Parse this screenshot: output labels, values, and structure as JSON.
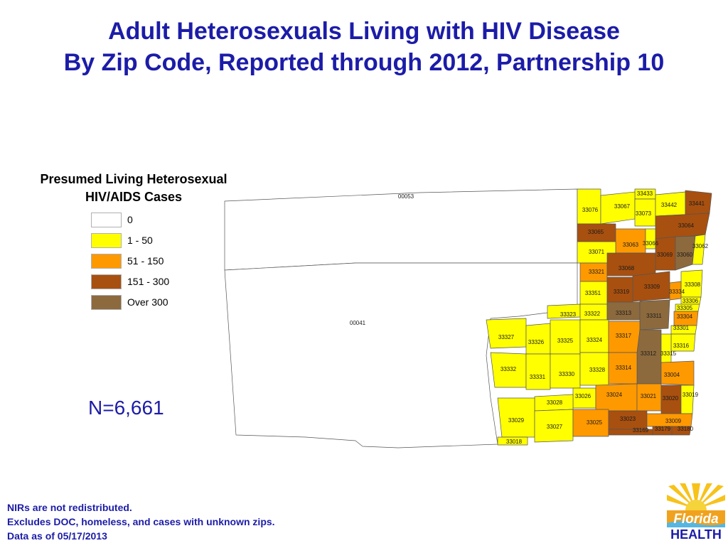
{
  "title": {
    "line1": "Adult Heterosexuals Living with HIV Disease",
    "line2": "By Zip Code, Reported through 2012, Partnership 10"
  },
  "legend": {
    "title_line1": "Presumed Living Heterosexual",
    "title_line2": "HIV/AIDS Cases",
    "items": [
      {
        "label": "0",
        "color": "#ffffff"
      },
      {
        "label": "1 - 50",
        "color": "#ffff00"
      },
      {
        "label": "51 - 150",
        "color": "#ff9900"
      },
      {
        "label": "151 - 300",
        "color": "#a85010"
      },
      {
        "label": "Over 300",
        "color": "#8c6a3e"
      }
    ]
  },
  "n_count": "N=6,661",
  "footnotes": [
    "NIRs are not redistributed.",
    "Excludes DOC, homeless, and cases with unknown zips.",
    "Data as of 05/17/2013"
  ],
  "logo": {
    "text_line1": "Florida",
    "text_line2": "HEALTH"
  },
  "zips": [
    {
      "zip": "00053",
      "class": "0"
    },
    {
      "zip": "00041",
      "class": "0"
    },
    {
      "zip": "33433",
      "class": "1 - 50"
    },
    {
      "zip": "33076",
      "class": "1 - 50"
    },
    {
      "zip": "33067",
      "class": "1 - 50"
    },
    {
      "zip": "33073",
      "class": "1 - 50"
    },
    {
      "zip": "33442",
      "class": "1 - 50"
    },
    {
      "zip": "33441",
      "class": "151 - 300"
    },
    {
      "zip": "33064",
      "class": "151 - 300"
    },
    {
      "zip": "33065",
      "class": "151 - 300"
    },
    {
      "zip": "33063",
      "class": "51 - 150"
    },
    {
      "zip": "33066",
      "class": "1 - 50"
    },
    {
      "zip": "33071",
      "class": "1 - 50"
    },
    {
      "zip": "33069",
      "class": "151 - 300"
    },
    {
      "zip": "33060",
      "class": "Over 300"
    },
    {
      "zip": "33062",
      "class": "1 - 50"
    },
    {
      "zip": "33321",
      "class": "51 - 150"
    },
    {
      "zip": "33068",
      "class": "151 - 300"
    },
    {
      "zip": "33309",
      "class": "151 - 300"
    },
    {
      "zip": "33308",
      "class": "1 - 50"
    },
    {
      "zip": "33351",
      "class": "1 - 50"
    },
    {
      "zip": "33319",
      "class": "151 - 300"
    },
    {
      "zip": "33334",
      "class": "51 - 150"
    },
    {
      "zip": "33306",
      "class": "1 - 50"
    },
    {
      "zip": "33305",
      "class": "1 - 50"
    },
    {
      "zip": "33323",
      "class": "1 - 50"
    },
    {
      "zip": "33322",
      "class": "1 - 50"
    },
    {
      "zip": "33313",
      "class": "Over 300"
    },
    {
      "zip": "33311",
      "class": "Over 300"
    },
    {
      "zip": "33304",
      "class": "51 - 150"
    },
    {
      "zip": "33301",
      "class": "1 - 50"
    },
    {
      "zip": "33327",
      "class": "1 - 50"
    },
    {
      "zip": "33326",
      "class": "1 - 50"
    },
    {
      "zip": "33325",
      "class": "1 - 50"
    },
    {
      "zip": "33324",
      "class": "1 - 50"
    },
    {
      "zip": "33317",
      "class": "51 - 150"
    },
    {
      "zip": "33316",
      "class": "1 - 50"
    },
    {
      "zip": "33312",
      "class": "Over 300"
    },
    {
      "zip": "33315",
      "class": "1 - 50"
    },
    {
      "zip": "33332",
      "class": "1 - 50"
    },
    {
      "zip": "33331",
      "class": "1 - 50"
    },
    {
      "zip": "33330",
      "class": "1 - 50"
    },
    {
      "zip": "33328",
      "class": "1 - 50"
    },
    {
      "zip": "33314",
      "class": "51 - 150"
    },
    {
      "zip": "33004",
      "class": "51 - 150"
    },
    {
      "zip": "33026",
      "class": "1 - 50"
    },
    {
      "zip": "33024",
      "class": "51 - 150"
    },
    {
      "zip": "33021",
      "class": "51 - 150"
    },
    {
      "zip": "33020",
      "class": "151 - 300"
    },
    {
      "zip": "33019",
      "class": "1 - 50"
    },
    {
      "zip": "33028",
      "class": "1 - 50"
    },
    {
      "zip": "33029",
      "class": "1 - 50"
    },
    {
      "zip": "33027",
      "class": "1 - 50"
    },
    {
      "zip": "33025",
      "class": "51 - 150"
    },
    {
      "zip": "33023",
      "class": "151 - 300"
    },
    {
      "zip": "33009",
      "class": "51 - 150"
    },
    {
      "zip": "33169",
      "class": "151 - 300"
    },
    {
      "zip": "33179",
      "class": "151 - 300"
    },
    {
      "zip": "33180",
      "class": "151 - 300"
    },
    {
      "zip": "33018",
      "class": "1 - 50"
    }
  ]
}
